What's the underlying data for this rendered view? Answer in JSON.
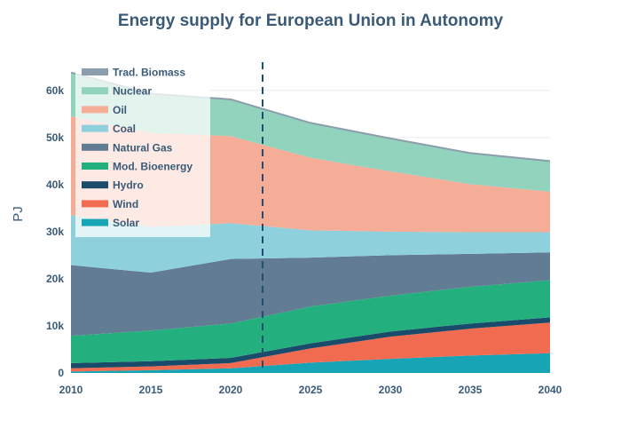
{
  "chart_data": {
    "type": "area",
    "title": "Energy supply for European Union in Autonomy",
    "xlabel": "",
    "ylabel": "PJ",
    "x": [
      2010,
      2015,
      2020,
      2025,
      2030,
      2035,
      2040
    ],
    "x_ticks": [
      "2010",
      "2015",
      "2020",
      "2025",
      "2030",
      "2035",
      "2040"
    ],
    "xlim": [
      2010,
      2040
    ],
    "y_ticks": [
      0,
      10000,
      20000,
      30000,
      40000,
      50000,
      60000
    ],
    "y_tick_labels": [
      "0",
      "10k",
      "20k",
      "30k",
      "40k",
      "50k",
      "60k"
    ],
    "ylim": [
      0,
      66000
    ],
    "grid": true,
    "stacked": true,
    "legend_position": "top-left",
    "reference_line": {
      "x": 2022,
      "style": "dashed"
    },
    "series": [
      {
        "name": "Solar",
        "color": "#17a5b6",
        "values": [
          300,
          600,
          1000,
          2200,
          3000,
          3700,
          4200
        ]
      },
      {
        "name": "Wind",
        "color": "#f06b50",
        "values": [
          700,
          800,
          1100,
          3000,
          4700,
          5700,
          6500
        ]
      },
      {
        "name": "Hydro",
        "color": "#1b4b6b",
        "values": [
          1100,
          1100,
          1100,
          1100,
          1100,
          1100,
          1100
        ]
      },
      {
        "name": "Mod. Bioenergy",
        "color": "#24b07e",
        "values": [
          5800,
          6500,
          7300,
          7800,
          7600,
          7800,
          7900
        ]
      },
      {
        "name": "Natural Gas",
        "color": "#627c93",
        "values": [
          15000,
          12300,
          13700,
          10400,
          8600,
          7000,
          5900
        ]
      },
      {
        "name": "Coal",
        "color": "#8ed1dc",
        "values": [
          10600,
          9700,
          7600,
          5800,
          5000,
          4600,
          4300
        ]
      },
      {
        "name": "Oil",
        "color": "#f5ad98",
        "values": [
          21000,
          20000,
          18500,
          15400,
          12800,
          10200,
          8600
        ]
      },
      {
        "name": "Nuclear",
        "color": "#91d3bd",
        "values": [
          9300,
          8300,
          7800,
          7400,
          7000,
          6600,
          6500
        ]
      },
      {
        "name": "Trad. Biomass",
        "color": "#8c9eab",
        "values": [
          0,
          0,
          0,
          0,
          0,
          0,
          0
        ]
      }
    ],
    "legend_order": [
      "Trad. Biomass",
      "Nuclear",
      "Oil",
      "Coal",
      "Natural Gas",
      "Mod. Bioenergy",
      "Hydro",
      "Wind",
      "Solar"
    ]
  }
}
